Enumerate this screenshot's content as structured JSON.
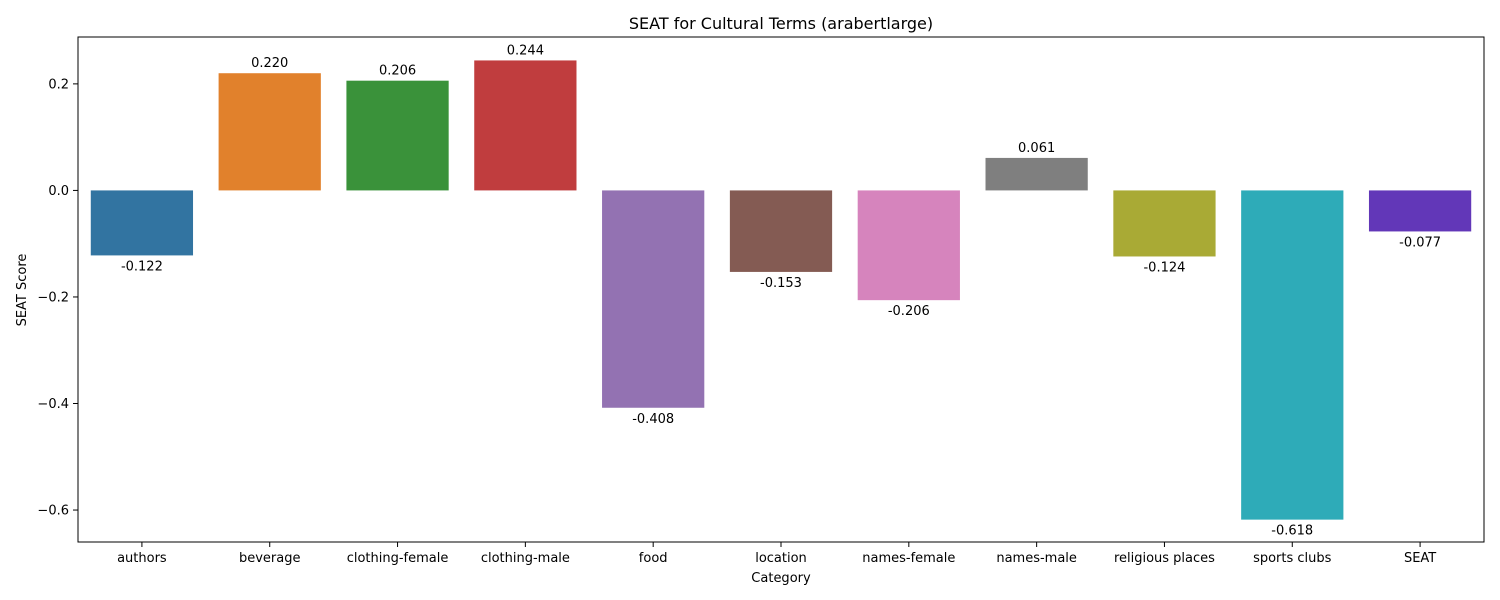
{
  "chart_data": {
    "type": "bar",
    "title": "SEAT for Cultural Terms (arabertlarge)",
    "xlabel": "Category",
    "ylabel": "SEAT Score",
    "ylim": [
      -0.66,
      0.288
    ],
    "yticks": [
      0.2,
      0.0,
      -0.2,
      -0.4,
      -0.6
    ],
    "ytick_labels": [
      "0.2",
      "0.0",
      "−0.2",
      "−0.4",
      "−0.6"
    ],
    "grid": false,
    "categories": [
      "authors",
      "beverage",
      "clothing-female",
      "clothing-male",
      "food",
      "location",
      "names-female",
      "names-male",
      "religious places",
      "sports clubs",
      "SEAT"
    ],
    "values": [
      -0.122,
      0.22,
      0.206,
      0.244,
      -0.408,
      -0.153,
      -0.206,
      0.061,
      -0.124,
      -0.618,
      -0.077
    ],
    "value_labels": [
      "-0.122",
      "0.220",
      "0.206",
      "0.244",
      "-0.408",
      "-0.153",
      "-0.206",
      "0.061",
      "-0.124",
      "-0.618",
      "-0.077"
    ],
    "colors": [
      "#3274a1",
      "#e1812c",
      "#3a923a",
      "#c03d3e",
      "#9372b2",
      "#845b53",
      "#d684bd",
      "#7f7f7f",
      "#a9aa35",
      "#2eabb8",
      "#6237b8"
    ]
  }
}
